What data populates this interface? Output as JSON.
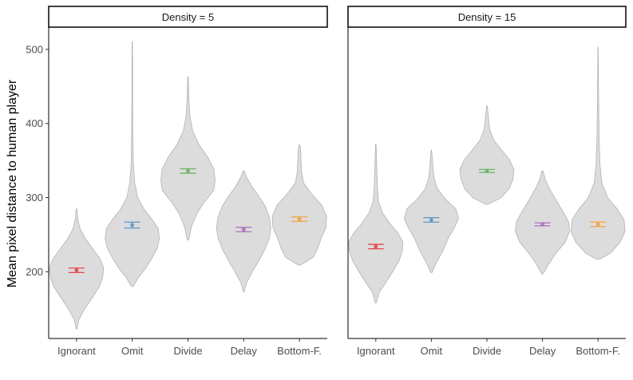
{
  "chart_data": {
    "type": "violin",
    "ylabel": "Mean pixel distance to human player",
    "xlabel": "",
    "ylim": [
      110,
      530
    ],
    "y_ticks": [
      200,
      300,
      400,
      500
    ],
    "categories": [
      "Ignorant",
      "Omit",
      "Divide",
      "Delay",
      "Bottom-F."
    ],
    "colors": {
      "Ignorant": "#e4474b",
      "Omit": "#5f96c7",
      "Divide": "#66b266",
      "Delay": "#ab6fbb",
      "Bottom-F.": "#f5a03c"
    },
    "panels": [
      {
        "label": "Density = 5",
        "series": [
          {
            "category": "Ignorant",
            "mean": 202,
            "ci": [
              199,
              205
            ],
            "min": 123,
            "max": 285,
            "profile": [
              [
                123,
                0.02
              ],
              [
                135,
                0.08
              ],
              [
                150,
                0.3
              ],
              [
                165,
                0.58
              ],
              [
                180,
                0.84
              ],
              [
                192,
                0.96
              ],
              [
                205,
                1.0
              ],
              [
                218,
                0.86
              ],
              [
                232,
                0.58
              ],
              [
                245,
                0.32
              ],
              [
                258,
                0.13
              ],
              [
                270,
                0.05
              ],
              [
                285,
                0.01
              ]
            ]
          },
          {
            "category": "Omit",
            "mean": 263,
            "ci": [
              259,
              267
            ],
            "min": 180,
            "max": 510,
            "profile": [
              [
                180,
                0.03
              ],
              [
                192,
                0.22
              ],
              [
                205,
                0.5
              ],
              [
                218,
                0.72
              ],
              [
                232,
                0.92
              ],
              [
                245,
                1.0
              ],
              [
                258,
                0.96
              ],
              [
                270,
                0.74
              ],
              [
                285,
                0.42
              ],
              [
                300,
                0.2
              ],
              [
                320,
                0.09
              ],
              [
                345,
                0.04
              ],
              [
                380,
                0.025
              ],
              [
                430,
                0.015
              ],
              [
                470,
                0.012
              ],
              [
                500,
                0.01
              ],
              [
                510,
                0.006
              ]
            ]
          },
          {
            "category": "Divide",
            "mean": 336,
            "ci": [
              333,
              339
            ],
            "min": 243,
            "max": 463,
            "profile": [
              [
                243,
                0.03
              ],
              [
                260,
                0.12
              ],
              [
                278,
                0.32
              ],
              [
                295,
                0.62
              ],
              [
                310,
                0.95
              ],
              [
                322,
                1.0
              ],
              [
                338,
                0.96
              ],
              [
                355,
                0.72
              ],
              [
                372,
                0.4
              ],
              [
                390,
                0.17
              ],
              [
                410,
                0.07
              ],
              [
                430,
                0.035
              ],
              [
                450,
                0.025
              ],
              [
                463,
                0.01
              ]
            ]
          },
          {
            "category": "Delay",
            "mean": 257,
            "ci": [
              254,
              260
            ],
            "min": 173,
            "max": 336,
            "profile": [
              [
                173,
                0.02
              ],
              [
                185,
                0.1
              ],
              [
                200,
                0.32
              ],
              [
                215,
                0.56
              ],
              [
                230,
                0.78
              ],
              [
                245,
                0.94
              ],
              [
                258,
                1.0
              ],
              [
                272,
                0.96
              ],
              [
                288,
                0.8
              ],
              [
                302,
                0.56
              ],
              [
                315,
                0.3
              ],
              [
                328,
                0.1
              ],
              [
                336,
                0.02
              ]
            ]
          },
          {
            "category": "Bottom-F.",
            "mean": 271,
            "ci": [
              268,
              274
            ],
            "min": 209,
            "max": 371,
            "profile": [
              [
                209,
                0.04
              ],
              [
                220,
                0.52
              ],
              [
                232,
                0.68
              ],
              [
                245,
                0.8
              ],
              [
                260,
                0.98
              ],
              [
                275,
                1.0
              ],
              [
                290,
                0.82
              ],
              [
                305,
                0.45
              ],
              [
                320,
                0.15
              ],
              [
                335,
                0.08
              ],
              [
                350,
                0.06
              ],
              [
                362,
                0.05
              ],
              [
                371,
                0.02
              ]
            ]
          }
        ]
      },
      {
        "label": "Density = 15",
        "series": [
          {
            "category": "Ignorant",
            "mean": 234,
            "ci": [
              231,
              237
            ],
            "min": 158,
            "max": 372,
            "profile": [
              [
                158,
                0.02
              ],
              [
                172,
                0.12
              ],
              [
                185,
                0.36
              ],
              [
                200,
                0.62
              ],
              [
                215,
                0.86
              ],
              [
                228,
                0.98
              ],
              [
                240,
                1.0
              ],
              [
                252,
                0.82
              ],
              [
                265,
                0.52
              ],
              [
                280,
                0.24
              ],
              [
                295,
                0.1
              ],
              [
                315,
                0.06
              ],
              [
                340,
                0.035
              ],
              [
                360,
                0.02
              ],
              [
                372,
                0.01
              ]
            ]
          },
          {
            "category": "Omit",
            "mean": 270,
            "ci": [
              267,
              273
            ],
            "min": 199,
            "max": 364,
            "profile": [
              [
                199,
                0.02
              ],
              [
                212,
                0.18
              ],
              [
                228,
                0.42
              ],
              [
                245,
                0.62
              ],
              [
                260,
                0.86
              ],
              [
                272,
                1.0
              ],
              [
                285,
                0.9
              ],
              [
                298,
                0.52
              ],
              [
                312,
                0.22
              ],
              [
                328,
                0.09
              ],
              [
                345,
                0.05
              ],
              [
                364,
                0.01
              ]
            ]
          },
          {
            "category": "Divide",
            "mean": 336,
            "ci": [
              334,
              338
            ],
            "min": 291,
            "max": 424,
            "profile": [
              [
                291,
                0.04
              ],
              [
                300,
                0.52
              ],
              [
                312,
                0.82
              ],
              [
                325,
                0.96
              ],
              [
                338,
                1.0
              ],
              [
                352,
                0.82
              ],
              [
                365,
                0.52
              ],
              [
                378,
                0.25
              ],
              [
                392,
                0.1
              ],
              [
                410,
                0.05
              ],
              [
                424,
                0.01
              ]
            ]
          },
          {
            "category": "Delay",
            "mean": 264,
            "ci": [
              262,
              266
            ],
            "min": 197,
            "max": 336,
            "profile": [
              [
                197,
                0.02
              ],
              [
                210,
                0.22
              ],
              [
                225,
                0.5
              ],
              [
                240,
                0.84
              ],
              [
                255,
                1.0
              ],
              [
                268,
                0.96
              ],
              [
                282,
                0.74
              ],
              [
                298,
                0.48
              ],
              [
                312,
                0.26
              ],
              [
                325,
                0.1
              ],
              [
                336,
                0.02
              ]
            ]
          },
          {
            "category": "Bottom-F.",
            "mean": 264,
            "ci": [
              261,
              267
            ],
            "min": 217,
            "max": 503,
            "profile": [
              [
                217,
                0.06
              ],
              [
                225,
                0.46
              ],
              [
                240,
                0.82
              ],
              [
                255,
                1.0
              ],
              [
                270,
                0.96
              ],
              [
                285,
                0.7
              ],
              [
                300,
                0.36
              ],
              [
                320,
                0.14
              ],
              [
                345,
                0.07
              ],
              [
                380,
                0.04
              ],
              [
                420,
                0.025
              ],
              [
                460,
                0.015
              ],
              [
                490,
                0.01
              ],
              [
                503,
                0.006
              ]
            ]
          }
        ]
      }
    ]
  }
}
